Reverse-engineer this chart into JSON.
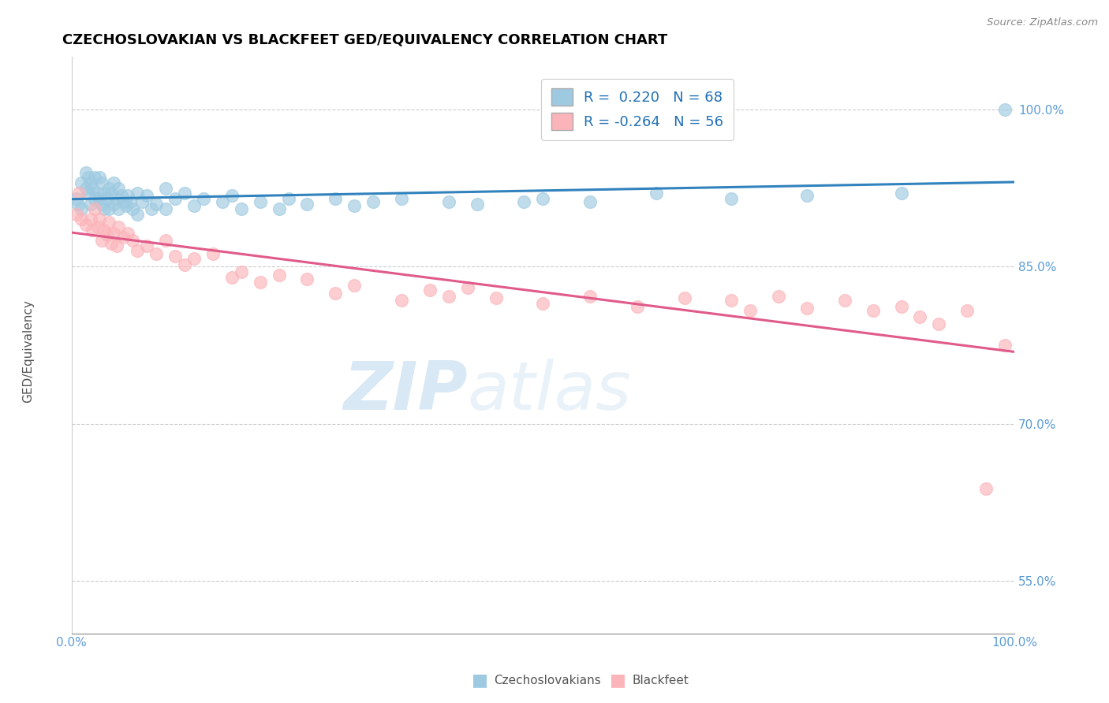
{
  "title": "CZECHOSLOVAKIAN VS BLACKFEET GED/EQUIVALENCY CORRELATION CHART",
  "source": "Source: ZipAtlas.com",
  "ylabel": "GED/Equivalency",
  "legend_label1": "Czechoslovakians",
  "legend_label2": "Blackfeet",
  "R1": 0.22,
  "N1": 68,
  "R2": -0.264,
  "N2": 56,
  "yticks": [
    0.55,
    0.7,
    0.85,
    1.0
  ],
  "ytick_labels": [
    "55.0%",
    "70.0%",
    "85.0%",
    "100.0%"
  ],
  "xtick_labels": [
    "0.0%",
    "100.0%"
  ],
  "color_blue": "#9ecae1",
  "color_pink": "#fbb4b9",
  "line_blue": "#3182bd",
  "line_pink": "#e05a8a",
  "watermark_zip": "ZIP",
  "watermark_atlas": "atlas",
  "xlim": [
    0.0,
    1.0
  ],
  "ylim": [
    0.5,
    1.05
  ],
  "blue_x": [
    0.005,
    0.007,
    0.01,
    0.01,
    0.015,
    0.015,
    0.018,
    0.018,
    0.02,
    0.02,
    0.022,
    0.025,
    0.025,
    0.027,
    0.03,
    0.03,
    0.032,
    0.032,
    0.035,
    0.035,
    0.038,
    0.04,
    0.04,
    0.042,
    0.045,
    0.045,
    0.048,
    0.05,
    0.05,
    0.053,
    0.055,
    0.058,
    0.06,
    0.062,
    0.065,
    0.07,
    0.07,
    0.075,
    0.08,
    0.085,
    0.09,
    0.1,
    0.1,
    0.11,
    0.12,
    0.13,
    0.14,
    0.16,
    0.17,
    0.18,
    0.2,
    0.22,
    0.23,
    0.25,
    0.28,
    0.3,
    0.32,
    0.35,
    0.4,
    0.43,
    0.48,
    0.5,
    0.55,
    0.62,
    0.7,
    0.78,
    0.88,
    0.99
  ],
  "blue_y": [
    0.915,
    0.91,
    0.93,
    0.905,
    0.94,
    0.925,
    0.935,
    0.92,
    0.93,
    0.91,
    0.925,
    0.935,
    0.915,
    0.92,
    0.935,
    0.915,
    0.93,
    0.91,
    0.92,
    0.905,
    0.915,
    0.925,
    0.905,
    0.92,
    0.93,
    0.91,
    0.915,
    0.925,
    0.905,
    0.918,
    0.912,
    0.908,
    0.918,
    0.912,
    0.905,
    0.92,
    0.9,
    0.912,
    0.918,
    0.905,
    0.91,
    0.925,
    0.905,
    0.915,
    0.92,
    0.908,
    0.915,
    0.912,
    0.918,
    0.905,
    0.912,
    0.905,
    0.915,
    0.91,
    0.915,
    0.908,
    0.912,
    0.915,
    0.912,
    0.91,
    0.912,
    0.915,
    0.912,
    0.92,
    0.915,
    0.918,
    0.92,
    1.0
  ],
  "pink_x": [
    0.005,
    0.008,
    0.01,
    0.015,
    0.02,
    0.022,
    0.025,
    0.028,
    0.03,
    0.032,
    0.035,
    0.038,
    0.04,
    0.042,
    0.045,
    0.048,
    0.05,
    0.055,
    0.06,
    0.065,
    0.07,
    0.08,
    0.09,
    0.1,
    0.11,
    0.12,
    0.13,
    0.15,
    0.17,
    0.18,
    0.2,
    0.22,
    0.25,
    0.28,
    0.3,
    0.35,
    0.38,
    0.4,
    0.42,
    0.45,
    0.5,
    0.55,
    0.6,
    0.65,
    0.7,
    0.72,
    0.75,
    0.78,
    0.82,
    0.85,
    0.88,
    0.9,
    0.92,
    0.95,
    0.97,
    0.99
  ],
  "pink_y": [
    0.9,
    0.92,
    0.895,
    0.89,
    0.895,
    0.885,
    0.905,
    0.888,
    0.895,
    0.875,
    0.885,
    0.88,
    0.892,
    0.872,
    0.882,
    0.87,
    0.888,
    0.878,
    0.882,
    0.875,
    0.865,
    0.87,
    0.862,
    0.875,
    0.86,
    0.852,
    0.858,
    0.862,
    0.84,
    0.845,
    0.835,
    0.842,
    0.838,
    0.825,
    0.832,
    0.818,
    0.828,
    0.822,
    0.83,
    0.82,
    0.815,
    0.822,
    0.812,
    0.82,
    0.818,
    0.808,
    0.822,
    0.81,
    0.818,
    0.808,
    0.812,
    0.802,
    0.795,
    0.808,
    0.638,
    0.775
  ]
}
